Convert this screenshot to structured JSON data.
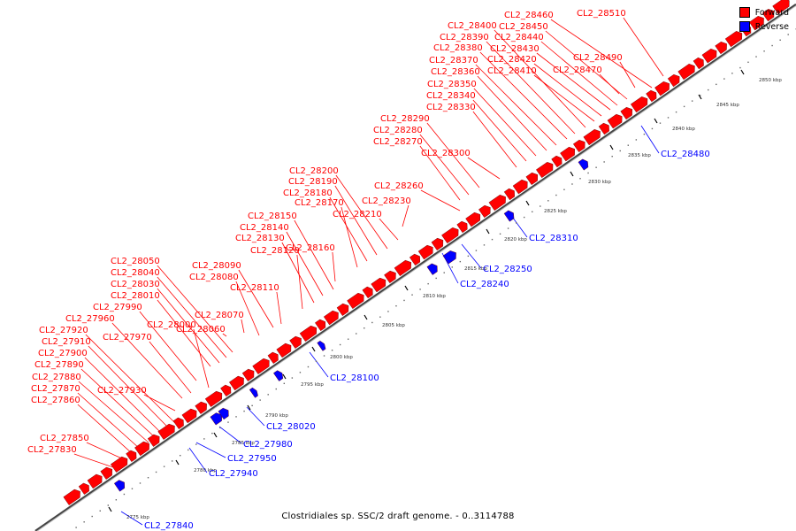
{
  "caption": "Clostridiales sp. SSC/2 draft genome. - 0..3114788",
  "legend": {
    "forward_label": "Forward",
    "reverse_label": "Reverse",
    "forward_color": "#ff0000",
    "reverse_color": "#0000ff"
  },
  "scale": {
    "ticks": [
      "2775 kbp",
      "2780 kbp",
      "2785 kbp",
      "2790 kbp",
      "2795 kbp",
      "2800 kbp",
      "2805 kbp",
      "2810 kbp",
      "2815 kbp",
      "2820 kbp",
      "2825 kbp",
      "2830 kbp",
      "2835 kbp",
      "2840 kbp",
      "2845 kbp",
      "2850 kbp"
    ]
  },
  "forward_genes": [
    "CL2_27830",
    "CL2_27850",
    "CL2_27860",
    "CL2_27870",
    "CL2_27880",
    "CL2_27890",
    "CL2_27900",
    "CL2_27910",
    "CL2_27920",
    "CL2_27930",
    "CL2_27960",
    "CL2_27970",
    "CL2_27990",
    "CL2_28000",
    "CL2_28010",
    "CL2_28030",
    "CL2_28040",
    "CL2_28050",
    "CL2_28060",
    "CL2_28070",
    "CL2_28080",
    "CL2_28090",
    "CL2_28110",
    "CL2_28120",
    "CL2_28130",
    "CL2_28140",
    "CL2_28150",
    "CL2_28160",
    "CL2_28170",
    "CL2_28180",
    "CL2_28190",
    "CL2_28200",
    "CL2_28210",
    "CL2_28230",
    "CL2_28260",
    "CL2_28270",
    "CL2_28280",
    "CL2_28290",
    "CL2_28300",
    "CL2_28330",
    "CL2_28340",
    "CL2_28350",
    "CL2_28360",
    "CL2_28370",
    "CL2_28380",
    "CL2_28390",
    "CL2_28400",
    "CL2_28410",
    "CL2_28420",
    "CL2_28430",
    "CL2_28440",
    "CL2_28450",
    "CL2_28460",
    "CL2_28470",
    "CL2_28490",
    "CL2_28510"
  ],
  "reverse_genes": [
    "CL2_27840",
    "CL2_27940",
    "CL2_27950",
    "CL2_27980",
    "CL2_28020",
    "CL2_28100",
    "CL2_28240",
    "CL2_28250",
    "CL2_28310",
    "CL2_28480"
  ]
}
